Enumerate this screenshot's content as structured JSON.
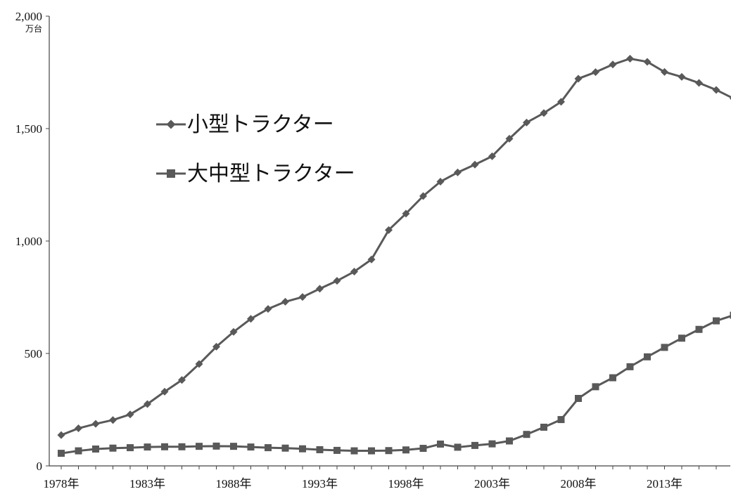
{
  "chart_data": {
    "type": "line",
    "unit": "万台",
    "x": [
      1978,
      1979,
      1980,
      1981,
      1982,
      1983,
      1984,
      1985,
      1986,
      1987,
      1988,
      1989,
      1990,
      1991,
      1992,
      1993,
      1994,
      1995,
      1996,
      1997,
      1998,
      1999,
      2000,
      2001,
      2002,
      2003,
      2004,
      2005,
      2006,
      2007,
      2008,
      2009,
      2010,
      2011,
      2012,
      2013,
      2014,
      2015,
      2016,
      2017
    ],
    "xticks": [
      "1978年",
      "1983年",
      "1988年",
      "1993年",
      "1998年",
      "2003年",
      "2008年",
      "2013年"
    ],
    "yticks": [
      "0",
      "500",
      "1,000",
      "1,500",
      "2,000"
    ],
    "ylim": [
      0,
      2000
    ],
    "series": [
      {
        "name": "小型トラクター",
        "marker": "diamond",
        "values": [
          137,
          167,
          187,
          204,
          229,
          275,
          330,
          382,
          453,
          530,
          596,
          654,
          698,
          730,
          751,
          788,
          823,
          864,
          918,
          1049,
          1122,
          1200,
          1264,
          1305,
          1340,
          1377,
          1455,
          1527,
          1569,
          1619,
          1722,
          1751,
          1785,
          1811,
          1797,
          1752,
          1730,
          1703,
          1672,
          1634
        ]
      },
      {
        "name": "大中型トラクター",
        "marker": "square",
        "values": [
          56,
          67,
          75,
          79,
          81,
          84,
          85,
          85,
          87,
          88,
          87,
          84,
          81,
          79,
          76,
          72,
          69,
          67,
          67,
          68,
          71,
          78,
          97,
          83,
          91,
          98,
          111,
          140,
          172,
          206,
          300,
          352,
          392,
          441,
          485,
          527,
          568,
          607,
          645,
          670
        ]
      }
    ],
    "color": "#595959"
  }
}
